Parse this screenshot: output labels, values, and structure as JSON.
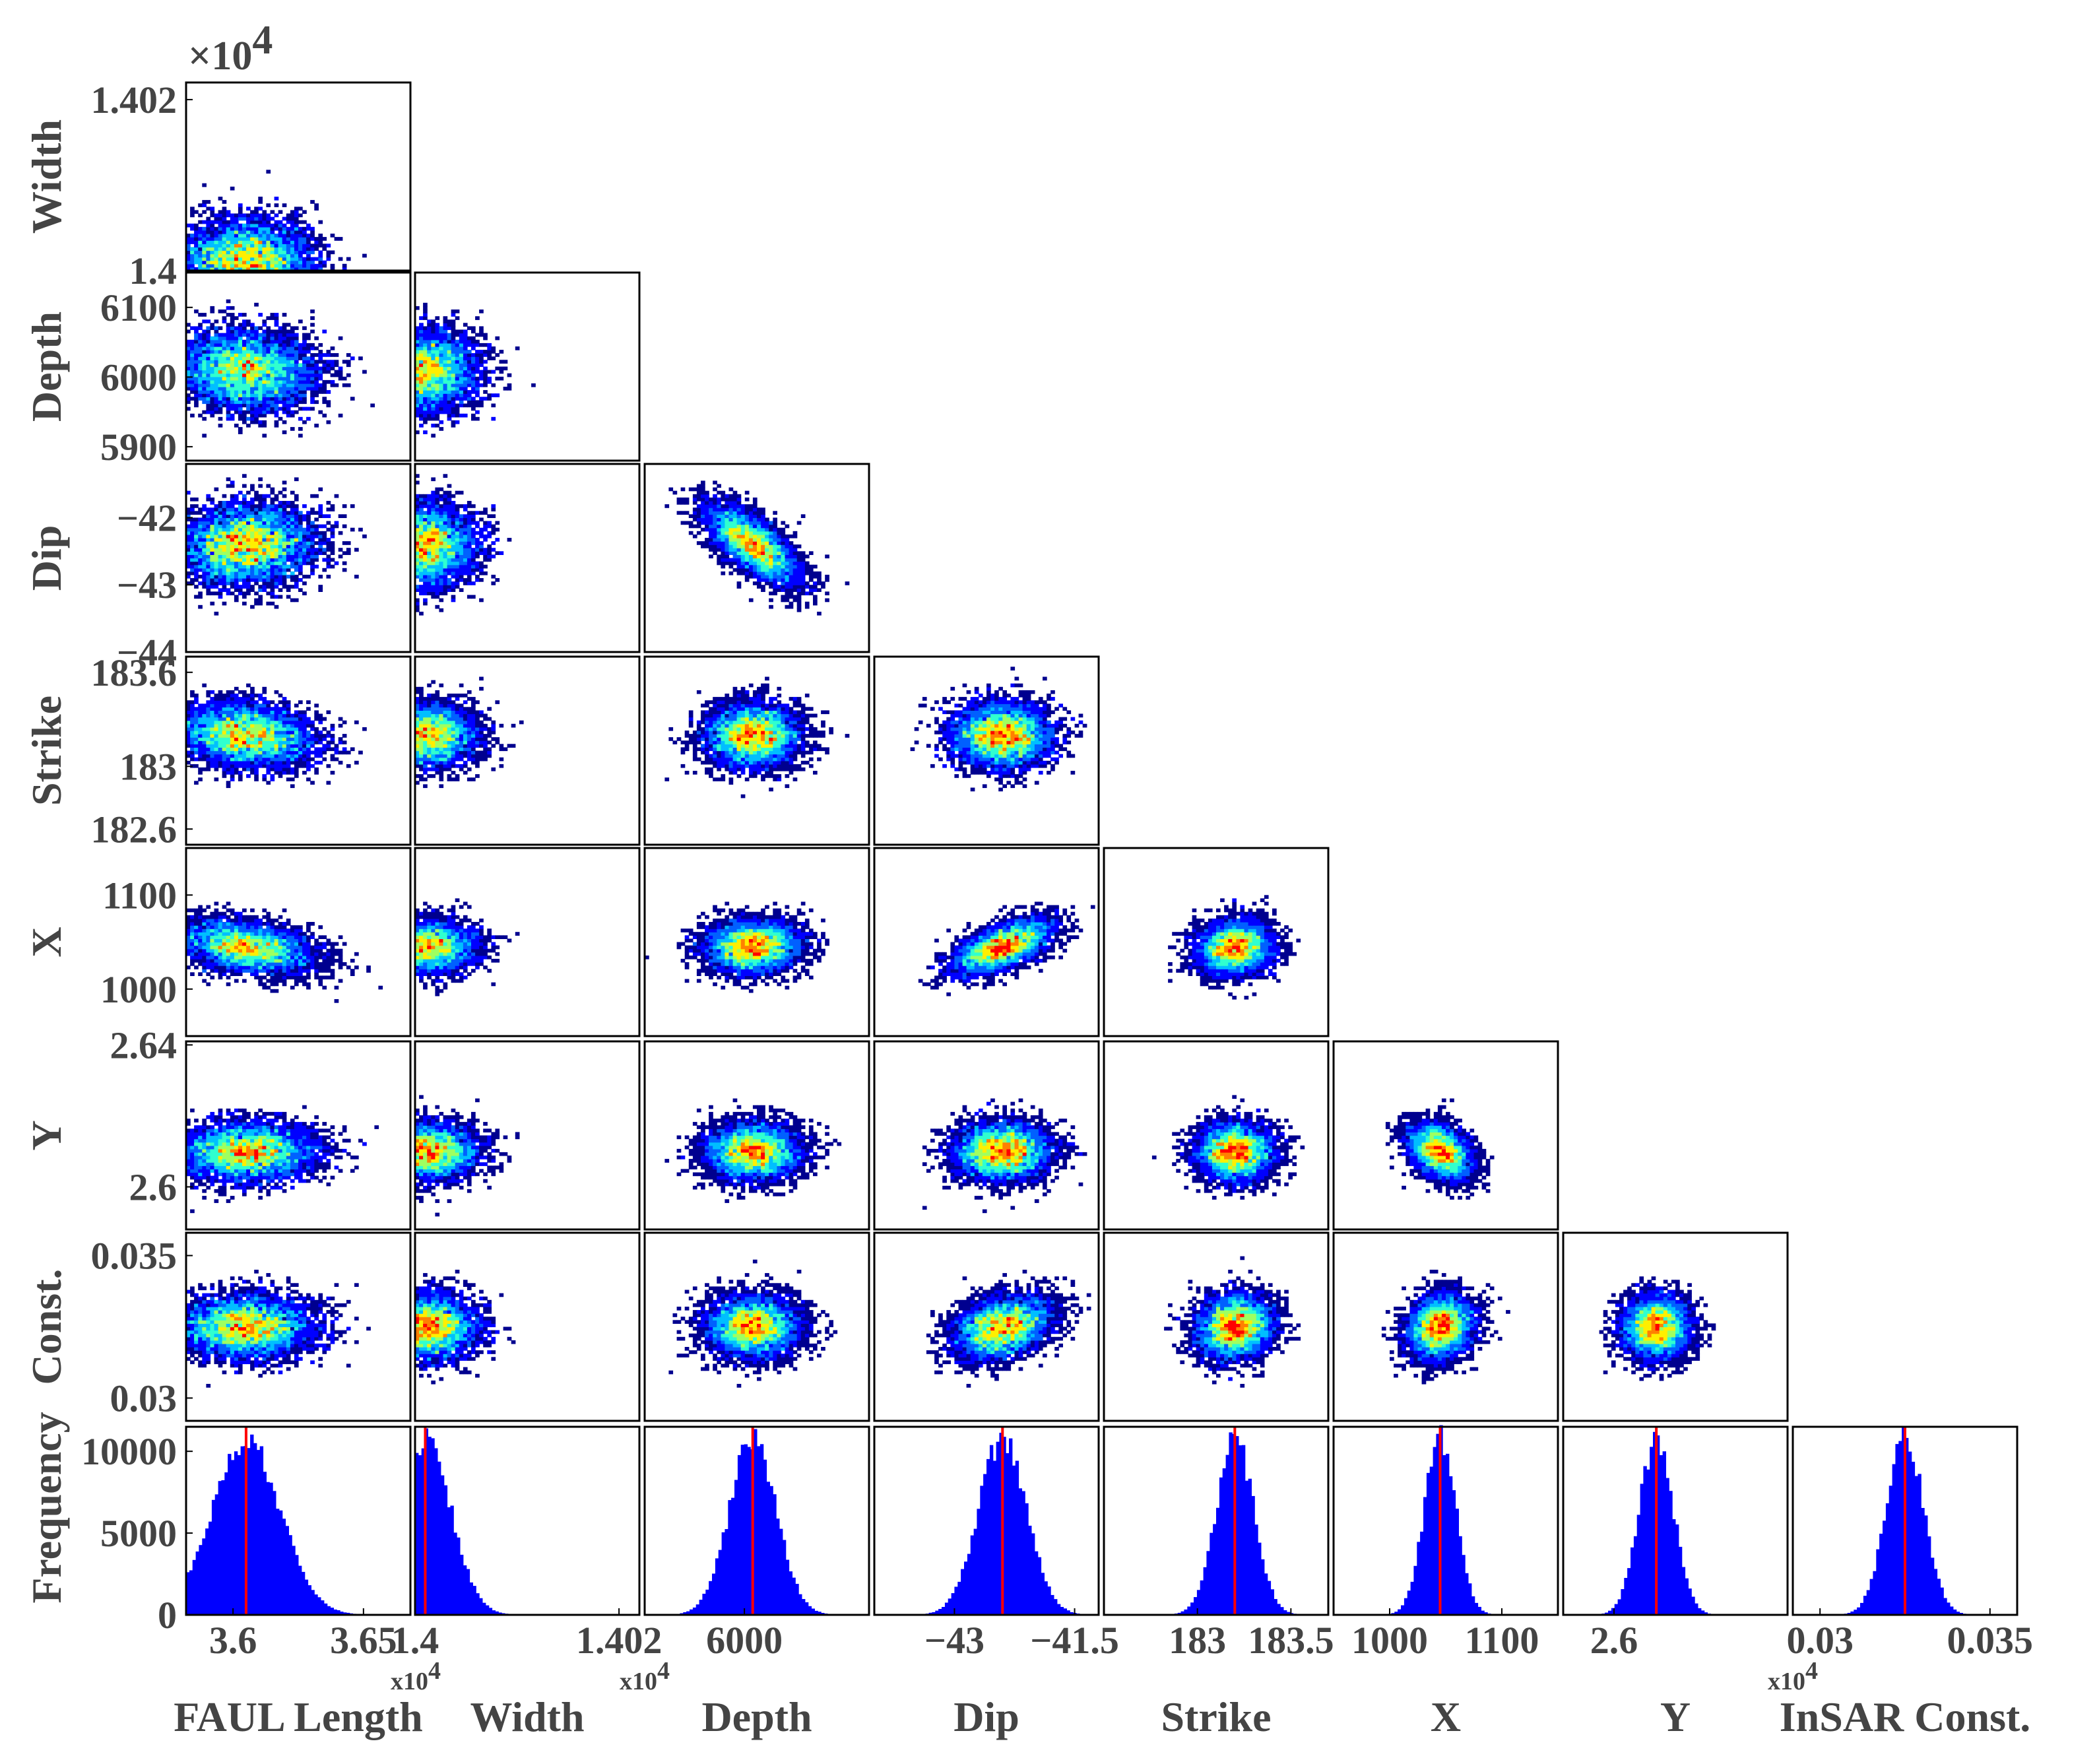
{
  "colors": {
    "frame": "#000000",
    "text": "#444444",
    "histogram_bar": "#0000ff",
    "best_fit_line": "#ff0000",
    "colormap": [
      "#00008f",
      "#0000ff",
      "#0060ff",
      "#00bfff",
      "#30ffcf",
      "#9fff60",
      "#ffef00",
      "#ff8000",
      "#ff0000"
    ]
  },
  "chart_data": {
    "type": "corner-plot",
    "parameters": [
      {
        "name": "FAUL Length",
        "xlabel": "FAUL Length",
        "ylabel": null,
        "mean": 36050,
        "sd": 130,
        "range": [
          35820,
          36680
        ],
        "x_ticks": [
          {
            "v": 36000,
            "label": "3.6"
          },
          {
            "v": 36500,
            "label": "3.65"
          }
        ],
        "x_multiplier": {
          "text": "x10",
          "exp": "4"
        },
        "y_ticks": []
      },
      {
        "name": "Width",
        "xlabel": "Width",
        "ylabel": "Width",
        "mean": 14000.1,
        "sd": 0.25,
        "range": [
          14000,
          14002.2
        ],
        "x_ticks": [
          {
            "v": 14000,
            "label": "1.4"
          },
          {
            "v": 14002,
            "label": "1.402"
          }
        ],
        "x_multiplier": {
          "text": "x10",
          "exp": "4"
        },
        "y_ticks": [
          {
            "v": 14002,
            "label": "1.402"
          },
          {
            "v": 14000,
            "label": "1.4"
          }
        ],
        "y_multiplier": {
          "text": "×10",
          "exp": "4"
        }
      },
      {
        "name": "Depth",
        "xlabel": "Depth",
        "ylabel": "Depth",
        "mean": 6010,
        "sd": 28,
        "range": [
          5880,
          6150
        ],
        "x_ticks": [
          {
            "v": 6000,
            "label": "6000"
          }
        ],
        "y_ticks": [
          {
            "v": 6100,
            "label": "6100"
          },
          {
            "v": 6000,
            "label": "6000"
          },
          {
            "v": 5900,
            "label": "5900"
          }
        ]
      },
      {
        "name": "Dip",
        "xlabel": "Dip",
        "ylabel": "Dip",
        "mean": -42.4,
        "sd": 0.3,
        "range": [
          -44.0,
          -41.2
        ],
        "x_ticks": [
          {
            "v": -43,
            "label": "−43"
          },
          {
            "v": -41.5,
            "label": "−41.5"
          }
        ],
        "y_ticks": [
          {
            "v": -42,
            "label": "−42"
          },
          {
            "v": -43,
            "label": "−43"
          },
          {
            "v": -44,
            "label": "−44"
          }
        ]
      },
      {
        "name": "Strike",
        "xlabel": "Strike",
        "ylabel": "Strike",
        "mean": 183.2,
        "sd": 0.1,
        "range": [
          182.5,
          183.7
        ],
        "x_ticks": [
          {
            "v": 183,
            "label": "183"
          },
          {
            "v": 183.5,
            "label": "183.5"
          }
        ],
        "y_ticks": [
          {
            "v": 183.6,
            "label": "183.6"
          },
          {
            "v": 183,
            "label": "183"
          },
          {
            "v": 182.6,
            "label": "182.6"
          }
        ]
      },
      {
        "name": "X",
        "xlabel": "X",
        "ylabel": "X",
        "mean": 1045,
        "sd": 14,
        "range": [
          950,
          1150
        ],
        "x_ticks": [
          {
            "v": 1000,
            "label": "1000"
          },
          {
            "v": 1100,
            "label": "1100"
          }
        ],
        "y_ticks": [
          {
            "v": 1100,
            "label": "1100"
          },
          {
            "v": 1000,
            "label": "1000"
          }
        ]
      },
      {
        "name": "Y",
        "xlabel": "Y",
        "ylabel": "Y",
        "mean": 26100,
        "sd": 40,
        "range": [
          25880,
          26410
        ],
        "x_ticks": [
          {
            "v": 26000,
            "label": "2.6"
          }
        ],
        "x_multiplier": {
          "text": "x10",
          "exp": "4"
        },
        "y_ticks": [
          {
            "v": 26400,
            "label": "2.64"
          },
          {
            "v": 26000,
            "label": "2.6"
          }
        ]
      },
      {
        "name": "InSAR Const.",
        "xlabel": "InSAR Const.",
        "ylabel": "Const.",
        "mean": 0.0325,
        "sd": 0.00055,
        "range": [
          0.0292,
          0.0358
        ],
        "x_ticks": [
          {
            "v": 0.03,
            "label": "0.03"
          },
          {
            "v": 0.035,
            "label": "0.035"
          }
        ],
        "y_ticks": [
          {
            "v": 0.035,
            "label": "0.035"
          },
          {
            "v": 0.03,
            "label": "0.03"
          }
        ]
      }
    ],
    "pairwise_correlations": {
      "Width|FAUL Length": 0.0,
      "Depth|FAUL Length": -0.1,
      "Depth|Width": 0.0,
      "Dip|FAUL Length": 0.05,
      "Dip|Width": 0.0,
      "Dip|Depth": -0.7,
      "Strike|FAUL Length": -0.2,
      "Strike|Width": 0.0,
      "Strike|Depth": 0.0,
      "Strike|Dip": 0.0,
      "X|FAUL Length": -0.35,
      "X|Width": 0.0,
      "X|Depth": 0.05,
      "X|Dip": 0.6,
      "X|Strike": 0.1,
      "Y|FAUL Length": 0.0,
      "Y|Width": 0.0,
      "Y|Depth": 0.0,
      "Y|Dip": 0.0,
      "Y|Strike": 0.0,
      "Y|X": -0.35,
      "InSAR Const.|FAUL Length": 0.0,
      "InSAR Const.|Width": 0.0,
      "InSAR Const.|Depth": 0.0,
      "InSAR Const.|Dip": 0.3,
      "InSAR Const.|Strike": 0.1,
      "InSAR Const.|X": 0.15,
      "InSAR Const.|Y": 0.0
    },
    "histogram": {
      "ylabel": "Frequency",
      "ylim": [
        0,
        11500
      ],
      "y_ticks": [
        {
          "v": 10000,
          "label": "10000"
        },
        {
          "v": 5000,
          "label": "5000"
        },
        {
          "v": 0,
          "label": "0"
        }
      ],
      "peak_count": 11000,
      "red_line_at": "best-fit value"
    }
  }
}
